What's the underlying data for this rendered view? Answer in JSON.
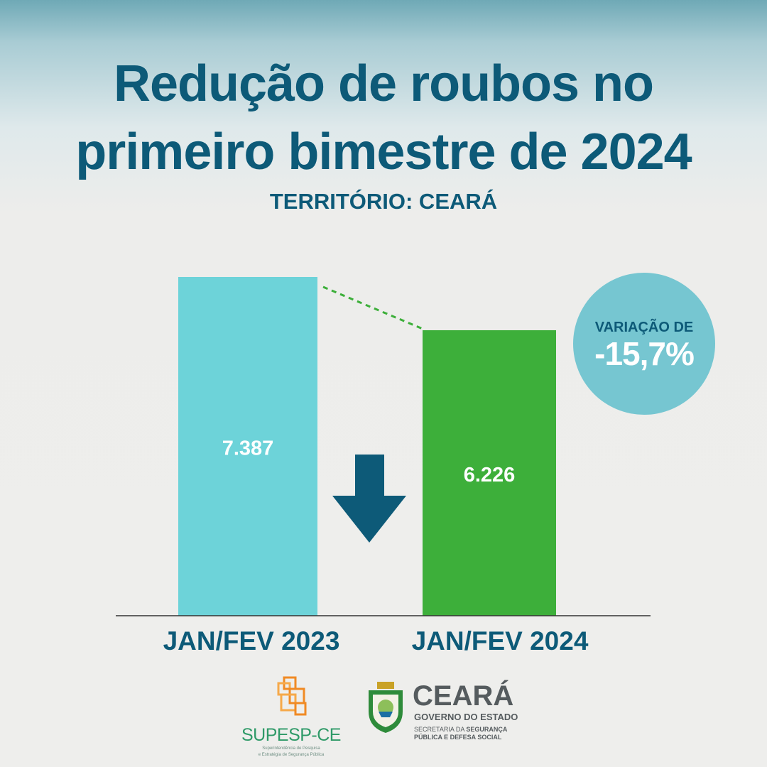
{
  "header": {
    "title_line1": "Redução de roubos no",
    "title_line2": "primeiro bimestre de 2024",
    "subtitle": "TERRITÓRIO: CEARÁ"
  },
  "badge": {
    "label": "VARIAÇÃO DE",
    "value": "-15,7%"
  },
  "chart_data": {
    "type": "bar",
    "title": "Redução de roubos no primeiro bimestre de 2024",
    "subtitle": "TERRITÓRIO: CEARÁ",
    "categories": [
      "JAN/FEV 2023",
      "JAN/FEV 2024"
    ],
    "values": [
      7387,
      6226
    ],
    "value_labels": [
      "7.387",
      "6.226"
    ],
    "bar_colors": [
      "#6dd3d9",
      "#3daf3a"
    ],
    "ylim": [
      0,
      7387
    ],
    "grid": false,
    "annotation": "VARIAÇÃO DE -15,7%",
    "trend": "down"
  },
  "footer": {
    "supesp_name": "SUPESP-CE",
    "supesp_tagline_1": "Superintendência de Pesquisa",
    "supesp_tagline_2": "e Estratégia de Segurança Pública",
    "ceara_title": "CEARÁ",
    "ceara_subtitle": "GOVERNO DO ESTADO",
    "dept_prefix": "SECRETARIA DA ",
    "dept_bold": "SEGURANÇA",
    "dept_line2": "PÚBLICA E DEFESA SOCIAL"
  },
  "colors": {
    "primary": "#0d5a78",
    "bar_2023": "#6dd3d9",
    "bar_2024": "#3daf3a",
    "badge": "#76c6d1",
    "dashed_line": "#3daf3a"
  },
  "icons": [
    "down-arrow-icon",
    "supesp-logo-icon",
    "ceara-coat-of-arms-icon"
  ]
}
